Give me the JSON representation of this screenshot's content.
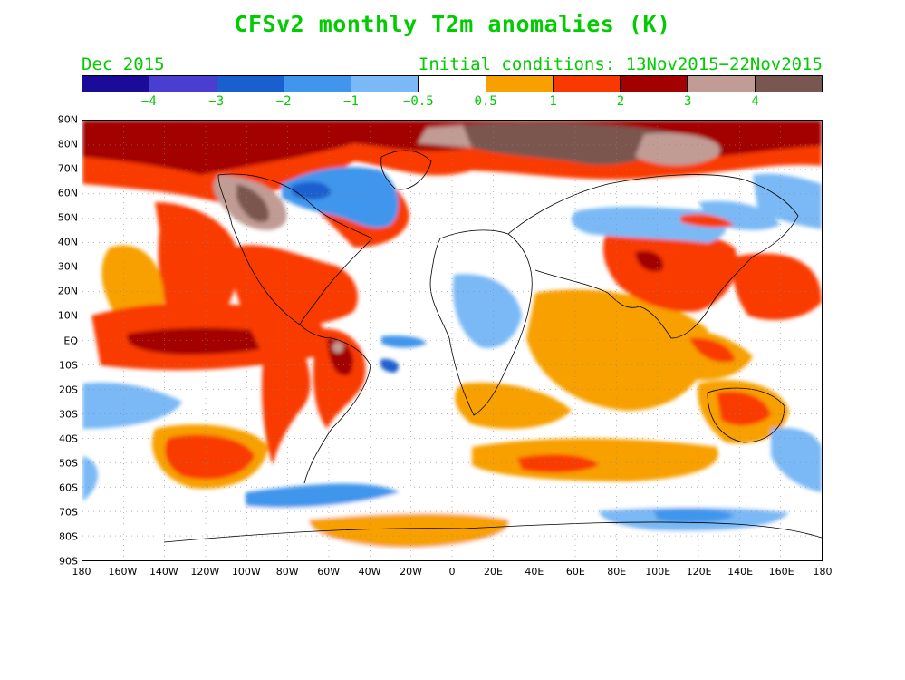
{
  "title": "CFSv2 monthly T2m anomalies (K)",
  "forecast_month": "Dec 2015",
  "initial_conditions": "Initial conditions: 13Nov2015−22Nov2015",
  "colorbar": {
    "colors": [
      "#1a0c99",
      "#4a3ed0",
      "#1a5fcf",
      "#3f96ec",
      "#7ab9f5",
      "#ffffff",
      "#f7a000",
      "#f93a00",
      "#a30000",
      "#c19c94",
      "#7a5650"
    ],
    "labels": [
      "−4",
      "−3",
      "−2",
      "−1",
      "−0.5",
      "0.5",
      "1",
      "2",
      "3",
      "4"
    ]
  },
  "lat_labels": [
    "90N",
    "80N",
    "70N",
    "60N",
    "50N",
    "40N",
    "30N",
    "20N",
    "10N",
    "EQ",
    "10S",
    "20S",
    "30S",
    "40S",
    "50S",
    "60S",
    "70S",
    "80S",
    "90S"
  ],
  "lon_labels": [
    "180",
    "160W",
    "140W",
    "120W",
    "100W",
    "80W",
    "60W",
    "40W",
    "20W",
    "0",
    "20E",
    "40E",
    "60E",
    "80E",
    "100E",
    "120E",
    "140E",
    "160E",
    "180"
  ]
}
